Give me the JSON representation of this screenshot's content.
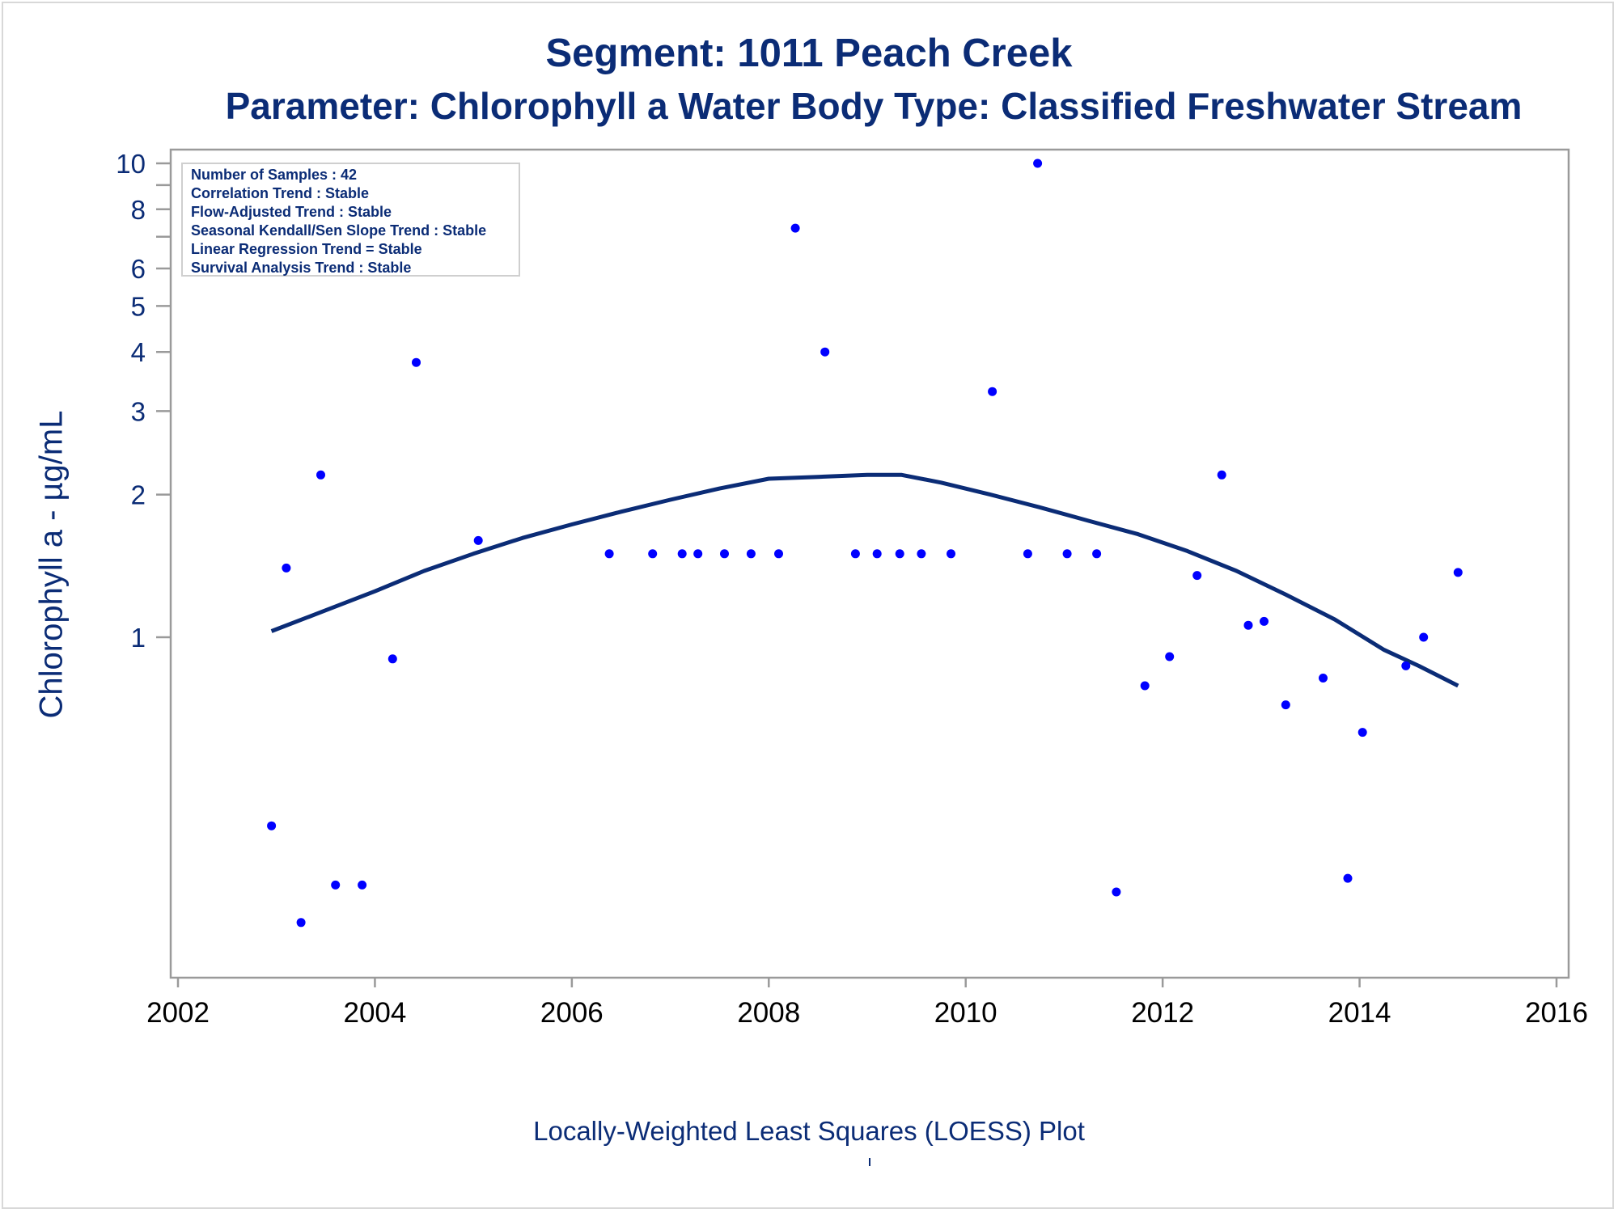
{
  "title_line1": "Segment: 1011  Peach Creek",
  "title_line2": "Parameter: Chlorophyll a   Water Body Type: Classified Freshwater Stream",
  "stats_box": [
    "Number of Samples : 42",
    "Correlation Trend : Stable",
    "Flow-Adjusted Trend : Stable",
    "Seasonal Kendall/Sen Slope Trend : Stable",
    "Linear Regression Trend = Stable",
    "Survival Analysis Trend : Stable"
  ],
  "colors": {
    "text": "#0b2c76",
    "points": "#0000ff",
    "curve": "#0b2c76",
    "frame": "#9a9a9a"
  },
  "chart_data": {
    "type": "scatter",
    "title": "Segment: 1011  Peach Creek",
    "subtitle": "Parameter: Chlorophyll a   Water Body Type: Classified Freshwater Stream",
    "xlabel": "Locally-Weighted Least Squares (LOESS) Plot",
    "ylabel": "Chlorophyll a -  µg/mL",
    "xlim": [
      2002,
      2016
    ],
    "ylim": [
      0.17,
      10.6
    ],
    "yscale": "log",
    "x_ticks": [
      2002,
      2004,
      2006,
      2008,
      2010,
      2012,
      2014,
      2016
    ],
    "y_ticks": [
      1,
      2,
      3,
      4,
      5,
      6,
      8,
      10
    ],
    "y_minor_ticks": [
      7,
      9
    ],
    "grid": false,
    "series": [
      {
        "type": "scatter",
        "x": [
          2002.95,
          2003.1,
          2003.25,
          2003.45,
          2003.6,
          2003.87,
          2004.18,
          2004.42,
          2005.05,
          2006.38,
          2006.82,
          2007.12,
          2007.28,
          2007.55,
          2007.82,
          2008.1,
          2008.27,
          2008.57,
          2008.88,
          2009.1,
          2009.33,
          2009.55,
          2009.85,
          2010.27,
          2010.63,
          2010.73,
          2011.03,
          2011.33,
          2011.53,
          2011.82,
          2012.07,
          2012.35,
          2012.6,
          2012.87,
          2013.03,
          2013.25,
          2013.63,
          2013.88,
          2014.03,
          2014.47,
          2014.65,
          2015.0
        ],
        "y": [
          0.4,
          1.4,
          0.25,
          2.2,
          0.3,
          0.3,
          0.9,
          3.8,
          1.6,
          1.5,
          1.5,
          1.5,
          1.5,
          1.5,
          1.5,
          1.5,
          7.3,
          4.0,
          1.5,
          1.5,
          1.5,
          1.5,
          1.5,
          3.3,
          1.5,
          10.0,
          1.5,
          1.5,
          0.29,
          0.79,
          0.91,
          1.35,
          2.2,
          1.06,
          1.08,
          0.72,
          0.82,
          0.31,
          0.63,
          0.87,
          1.0,
          1.37
        ]
      },
      {
        "type": "line",
        "x": [
          2002.95,
          2003.5,
          2004.0,
          2004.5,
          2005.0,
          2005.5,
          2006.0,
          2006.5,
          2007.0,
          2007.5,
          2008.0,
          2008.5,
          2009.0,
          2009.35,
          2009.75,
          2010.25,
          2010.75,
          2011.25,
          2011.75,
          2012.25,
          2012.75,
          2013.25,
          2013.75,
          2014.25,
          2014.6,
          2015.0
        ],
        "y": [
          1.03,
          1.14,
          1.25,
          1.38,
          1.5,
          1.62,
          1.73,
          1.84,
          1.95,
          2.06,
          2.16,
          2.18,
          2.2,
          2.2,
          2.12,
          2.0,
          1.88,
          1.76,
          1.65,
          1.52,
          1.38,
          1.23,
          1.09,
          0.94,
          0.87,
          0.79
        ]
      }
    ]
  }
}
